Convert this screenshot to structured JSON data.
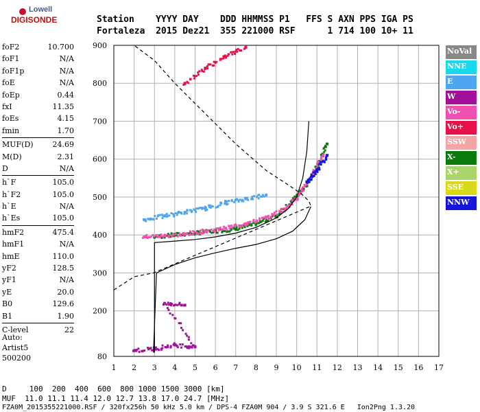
{
  "logo": {
    "line1": "Lowell",
    "line2": "DIGISONDE"
  },
  "header": {
    "line1": "Station    YYYY DAY    DDD HHMMSS P1   FFS S AXN PPS IGA PS",
    "line2": "Fortaleza  2015 Dez21  355 221000 RSF      1 714 100 10+ 11"
  },
  "params": [
    [
      {
        "k": "foF2",
        "v": "10.700"
      },
      {
        "k": "foF1",
        "v": "N/A"
      },
      {
        "k": "foF1p",
        "v": "N/A"
      },
      {
        "k": "foE",
        "v": "N/A"
      },
      {
        "k": "foEp",
        "v": "0.44"
      },
      {
        "k": "fxI",
        "v": "11.35"
      },
      {
        "k": "foEs",
        "v": "4.15"
      },
      {
        "k": "fmin",
        "v": "1.70"
      }
    ],
    [
      {
        "k": "MUF(D)",
        "v": "24.69"
      },
      {
        "k": "M(D)",
        "v": "2.31"
      },
      {
        "k": "D",
        "v": "N/A"
      }
    ],
    [
      {
        "k": "h`F",
        "v": "105.0"
      },
      {
        "k": "h`F2",
        "v": "105.0"
      },
      {
        "k": "h`E",
        "v": "N/A"
      },
      {
        "k": "h`Es",
        "v": "105.0"
      }
    ],
    [
      {
        "k": "hmF2",
        "v": "475.4"
      },
      {
        "k": "hmF1",
        "v": "N/A"
      },
      {
        "k": "hmE",
        "v": "110.0"
      },
      {
        "k": "yF2",
        "v": "128.5"
      },
      {
        "k": "yF1",
        "v": "N/A"
      },
      {
        "k": "yE",
        "v": "20.0"
      },
      {
        "k": "B0",
        "v": "129.6"
      },
      {
        "k": "B1",
        "v": "1.90"
      }
    ],
    [
      {
        "k": "C-level",
        "v": "22"
      }
    ]
  ],
  "auto": {
    "line1": "Auto:",
    "line2": "Artist5",
    "line3": "500200"
  },
  "legend": [
    {
      "label": "NoVal",
      "color": "#888888"
    },
    {
      "label": "NNE",
      "color": "#19d9ef"
    },
    {
      "label": "E",
      "color": "#4da6ef"
    },
    {
      "label": "W",
      "color": "#a0109a"
    },
    {
      "label": "Vo-",
      "color": "#f050b0"
    },
    {
      "label": "Vo+",
      "color": "#e8104a"
    },
    {
      "label": "SSW",
      "color": "#f4a4a4"
    },
    {
      "label": "X-",
      "color": "#0a7a0a"
    },
    {
      "label": "X+",
      "color": "#a8d46a"
    },
    {
      "label": "SSE",
      "color": "#d8d818"
    },
    {
      "label": "NNW",
      "color": "#1414dc"
    }
  ],
  "footer": {
    "line1": "D     100  200  400  600  800 1000 1500 3000 [km]",
    "line2": "MUF  11.0 11.1 11.4 12.0 12.7 13.8 17.0 24.7 [MHz]",
    "line3": "FZA0M_2015355221000.RSF / 320fx256h 50 kHz 5.0 km / DPS-4 FZA0M 904 / 3.9 S 321.6 E   Ion2Png 1.3.20"
  },
  "chart_data": {
    "type": "scatter",
    "title": "",
    "xlabel": "",
    "ylabel": "",
    "xlim": [
      1,
      17
    ],
    "ylim": [
      80,
      900
    ],
    "x_ticks": [
      1,
      2,
      3,
      4,
      5,
      6,
      7,
      8,
      9,
      10,
      11,
      12,
      13,
      14,
      15,
      16,
      17
    ],
    "y_ticks": [
      80,
      200,
      300,
      400,
      500,
      600,
      700,
      800,
      900
    ],
    "grid": true,
    "series": [
      {
        "name": "X-",
        "color": "#0a7a0a",
        "points": [
          [
            3.0,
            395
          ],
          [
            4.0,
            400
          ],
          [
            5.0,
            405
          ],
          [
            6.0,
            410
          ],
          [
            7.0,
            415
          ],
          [
            8.0,
            430
          ],
          [
            9.0,
            450
          ],
          [
            9.8,
            490
          ],
          [
            10.5,
            530
          ],
          [
            11.0,
            580
          ],
          [
            11.5,
            640
          ]
        ]
      },
      {
        "name": "Vo-",
        "color": "#f050b0",
        "points": [
          [
            2.5,
            395
          ],
          [
            3.5,
            398
          ],
          [
            4.5,
            402
          ],
          [
            5.5,
            410
          ],
          [
            6.5,
            418
          ],
          [
            7.5,
            430
          ],
          [
            8.5,
            445
          ],
          [
            9.5,
            470
          ],
          [
            10.2,
            510
          ],
          [
            10.8,
            560
          ],
          [
            11.3,
            610
          ]
        ]
      },
      {
        "name": "E",
        "color": "#4da6ef",
        "points": [
          [
            2.5,
            440
          ],
          [
            3.5,
            450
          ],
          [
            4.5,
            460
          ],
          [
            5.5,
            470
          ],
          [
            6.5,
            485
          ],
          [
            7.5,
            495
          ],
          [
            8.5,
            505
          ]
        ]
      },
      {
        "name": "NNW",
        "color": "#1414dc",
        "points": [
          [
            10.5,
            540
          ],
          [
            11.0,
            570
          ],
          [
            11.5,
            610
          ]
        ]
      },
      {
        "name": "Vo+",
        "color": "#e8104a",
        "points": [
          [
            4.5,
            800
          ],
          [
            5.5,
            840
          ],
          [
            6.5,
            870
          ],
          [
            7.5,
            895
          ]
        ]
      },
      {
        "name": "W",
        "color": "#a0109a",
        "points": [
          [
            2.0,
            95
          ],
          [
            3.0,
            100
          ],
          [
            4.0,
            110
          ],
          [
            5.0,
            105
          ],
          [
            3.5,
            220
          ],
          [
            4.5,
            215
          ]
        ]
      }
    ],
    "virtual_height_trace": [
      [
        3.0,
        90
      ],
      [
        3.0,
        380
      ],
      [
        4.0,
        384
      ],
      [
        5.0,
        388
      ],
      [
        6.0,
        395
      ],
      [
        7.0,
        405
      ],
      [
        8.0,
        420
      ],
      [
        9.0,
        445
      ],
      [
        9.6,
        470
      ],
      [
        10.0,
        500
      ],
      [
        10.3,
        550
      ],
      [
        10.5,
        620
      ],
      [
        10.6,
        700
      ]
    ],
    "profile_trace": [
      [
        2.95,
        90
      ],
      [
        3.1,
        300
      ],
      [
        4.0,
        322
      ],
      [
        5.0,
        340
      ],
      [
        6.0,
        353
      ],
      [
        7.0,
        365
      ],
      [
        8.0,
        375
      ],
      [
        9.0,
        390
      ],
      [
        9.8,
        410
      ],
      [
        10.4,
        440
      ],
      [
        10.7,
        475
      ]
    ],
    "profile_extrapolation": [
      [
        1.0,
        255
      ],
      [
        2.0,
        290
      ],
      [
        2.95,
        300
      ],
      [
        10.7,
        476
      ],
      [
        10.6,
        490
      ],
      [
        10.2,
        510
      ],
      [
        9.5,
        535
      ],
      [
        8.5,
        570
      ],
      [
        7.0,
        640
      ],
      [
        5.5,
        720
      ],
      [
        4.0,
        800
      ],
      [
        3.0,
        860
      ],
      [
        2.0,
        900
      ]
    ]
  }
}
